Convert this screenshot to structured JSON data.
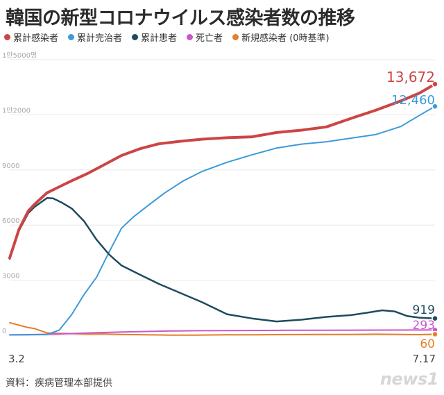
{
  "title": "韓国の新型コロナウイルス感染者数の推移",
  "source": "資料：疾病管理本部提供",
  "logo": "news1",
  "colors": {
    "confirmed": "#cc4545",
    "recovered": "#3c9ad9",
    "active": "#1f4a5e",
    "deaths": "#cc55cc",
    "new": "#e3802a",
    "grid": "#e8e8e8",
    "tick": "#aaaaaa"
  },
  "chart_data": {
    "type": "line",
    "title": "韓国の新型コロナウイルス感染者数の推移",
    "x_range_labels": [
      "3.2",
      "7.17"
    ],
    "ylim": [
      0,
      15000
    ],
    "y_ticks": [
      {
        "value": 0,
        "label": "0"
      },
      {
        "value": 3000,
        "label": "3000"
      },
      {
        "value": 6000,
        "label": "6000"
      },
      {
        "value": 9000,
        "label": "9000"
      },
      {
        "value": 12000,
        "label": "1만2000"
      },
      {
        "value": 15000,
        "label": "1만5000명"
      }
    ],
    "grid": true,
    "legend_position": "top",
    "days": 138,
    "series": [
      {
        "key": "confirmed",
        "name": "累計感染者",
        "color_key": "confirmed",
        "width": 4,
        "end_label": "13,672",
        "points": [
          [
            0,
            4212
          ],
          [
            3,
            5766
          ],
          [
            6,
            6767
          ],
          [
            8,
            7134
          ],
          [
            12,
            7752
          ],
          [
            16,
            8086
          ],
          [
            20,
            8413
          ],
          [
            25,
            8799
          ],
          [
            30,
            9241
          ],
          [
            36,
            9786
          ],
          [
            42,
            10156
          ],
          [
            48,
            10420
          ],
          [
            55,
            10561
          ],
          [
            62,
            10674
          ],
          [
            70,
            10752
          ],
          [
            78,
            10804
          ],
          [
            86,
            11037
          ],
          [
            94,
            11165
          ],
          [
            102,
            11344
          ],
          [
            110,
            11806
          ],
          [
            118,
            12257
          ],
          [
            126,
            12757
          ],
          [
            132,
            13181
          ],
          [
            137,
            13672
          ]
        ]
      },
      {
        "key": "recovered",
        "name": "累計完治者",
        "color_key": "recovered",
        "width": 2,
        "end_label": "12,460",
        "points": [
          [
            0,
            22
          ],
          [
            6,
            27
          ],
          [
            12,
            41
          ],
          [
            16,
            288
          ],
          [
            20,
            1137
          ],
          [
            24,
            2233
          ],
          [
            28,
            3166
          ],
          [
            32,
            4528
          ],
          [
            36,
            5828
          ],
          [
            40,
            6463
          ],
          [
            45,
            7117
          ],
          [
            50,
            7757
          ],
          [
            56,
            8411
          ],
          [
            62,
            8922
          ],
          [
            70,
            9417
          ],
          [
            78,
            9821
          ],
          [
            86,
            10194
          ],
          [
            94,
            10405
          ],
          [
            102,
            10531
          ],
          [
            110,
            10730
          ],
          [
            118,
            10930
          ],
          [
            126,
            11365
          ],
          [
            132,
            11970
          ],
          [
            137,
            12460
          ]
        ]
      },
      {
        "key": "active",
        "name": "累計患者",
        "color_key": "active",
        "width": 2.5,
        "end_label": "919",
        "points": [
          [
            0,
            4156
          ],
          [
            3,
            5700
          ],
          [
            6,
            6650
          ],
          [
            8,
            6990
          ],
          [
            12,
            7470
          ],
          [
            14,
            7450
          ],
          [
            17,
            7200
          ],
          [
            20,
            6900
          ],
          [
            24,
            6200
          ],
          [
            28,
            5200
          ],
          [
            32,
            4400
          ],
          [
            36,
            3800
          ],
          [
            42,
            3300
          ],
          [
            48,
            2800
          ],
          [
            55,
            2300
          ],
          [
            62,
            1800
          ],
          [
            70,
            1150
          ],
          [
            78,
            920
          ],
          [
            86,
            750
          ],
          [
            94,
            850
          ],
          [
            102,
            1000
          ],
          [
            110,
            1100
          ],
          [
            116,
            1250
          ],
          [
            120,
            1360
          ],
          [
            124,
            1300
          ],
          [
            128,
            1050
          ],
          [
            132,
            960
          ],
          [
            137,
            919
          ]
        ]
      },
      {
        "key": "deaths",
        "name": "死亡者",
        "color_key": "deaths",
        "width": 2,
        "end_label": "293",
        "points": [
          [
            0,
            22
          ],
          [
            8,
            40
          ],
          [
            14,
            60
          ],
          [
            20,
            94
          ],
          [
            28,
            139
          ],
          [
            36,
            177
          ],
          [
            44,
            208
          ],
          [
            52,
            234
          ],
          [
            60,
            250
          ],
          [
            70,
            256
          ],
          [
            80,
            266
          ],
          [
            90,
            273
          ],
          [
            100,
            276
          ],
          [
            110,
            280
          ],
          [
            120,
            283
          ],
          [
            130,
            288
          ],
          [
            137,
            293
          ]
        ]
      },
      {
        "key": "new",
        "name": "新規感染者 (0時基準)",
        "color_key": "new",
        "width": 2,
        "end_label": "60",
        "points": [
          [
            0,
            686
          ],
          [
            2,
            600
          ],
          [
            4,
            505
          ],
          [
            6,
            420
          ],
          [
            8,
            367
          ],
          [
            10,
            248
          ],
          [
            12,
            131
          ],
          [
            14,
            114
          ],
          [
            18,
            98
          ],
          [
            22,
            80
          ],
          [
            26,
            64
          ],
          [
            30,
            74
          ],
          [
            36,
            46
          ],
          [
            44,
            27
          ],
          [
            52,
            10
          ],
          [
            60,
            8
          ],
          [
            70,
            26
          ],
          [
            80,
            30
          ],
          [
            90,
            40
          ],
          [
            100,
            48
          ],
          [
            110,
            45
          ],
          [
            118,
            60
          ],
          [
            126,
            50
          ],
          [
            132,
            39
          ],
          [
            137,
            60
          ]
        ]
      }
    ]
  }
}
